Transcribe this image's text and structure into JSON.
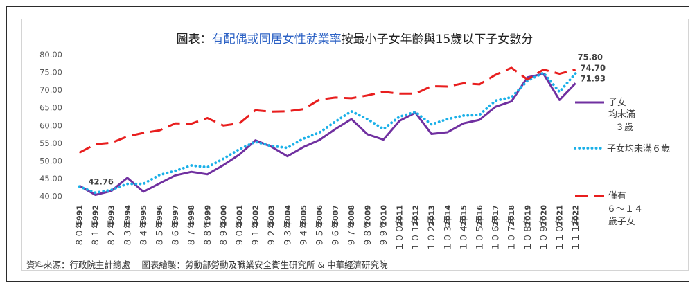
{
  "chart_data": {
    "type": "line",
    "title": {
      "prefix": "圖表：",
      "highlight": "有配偶或同居女性就業率",
      "suffix": "按最小子女年齡與15歲以下子女數分"
    },
    "x": [
      1991,
      1992,
      1993,
      1994,
      1995,
      1996,
      1997,
      1998,
      1999,
      2000,
      2001,
      2002,
      2003,
      2004,
      2005,
      2006,
      2007,
      2008,
      2009,
      2010,
      2011,
      2012,
      2013,
      2014,
      2015,
      2016,
      2017,
      2018,
      2019,
      2020,
      2021,
      2022
    ],
    "x_roc": [
      "８０年",
      "８１年",
      "８２年",
      "８３年",
      "８４年",
      "８５年",
      "８６年",
      "８７年",
      "８８年",
      "８９年",
      "９０年",
      "９１年",
      "９２年",
      "９３年",
      "９４年",
      "９５年",
      "９６年",
      "９７年",
      "９８年",
      "９９年",
      "１００年",
      "１０１年",
      "１０２年",
      "１０３年",
      "１０４年",
      "１０５年",
      "１０６年",
      "１０７年",
      "１０８年",
      "１０９年",
      "１１０年",
      "１１１年"
    ],
    "y_ticks": [
      "40.00",
      "45.00",
      "50.00",
      "55.00",
      "60.00",
      "65.00",
      "70.00",
      "75.00",
      "80.00"
    ],
    "ylim": [
      40,
      80
    ],
    "series": [
      {
        "key": "under3",
        "legend_lines": [
          "子女",
          "均未滿",
          "３歲"
        ],
        "color": "#7030a0",
        "style": "solid",
        "values": [
          43.0,
          40.4,
          41.5,
          45.2,
          41.3,
          43.6,
          45.9,
          46.9,
          46.2,
          48.8,
          51.8,
          55.8,
          54.0,
          51.3,
          53.9,
          55.9,
          59.0,
          61.8,
          57.5,
          56.0,
          61.3,
          63.6,
          57.6,
          58.1,
          60.6,
          61.6,
          65.3,
          66.8,
          73.6,
          74.6,
          67.2,
          71.93
        ]
      },
      {
        "key": "under6",
        "legend_lines": [
          "子女均未滿６歲"
        ],
        "color": "#1ab0e8",
        "style": "dotted",
        "values": [
          42.76,
          41.0,
          41.8,
          43.5,
          43.5,
          46.0,
          47.2,
          48.7,
          48.2,
          50.6,
          53.3,
          55.4,
          54.2,
          53.7,
          56.3,
          58.0,
          61.1,
          64.0,
          61.8,
          59.0,
          62.5,
          63.8,
          60.3,
          61.8,
          62.8,
          63.0,
          67.0,
          68.0,
          72.6,
          74.9,
          69.5,
          74.7
        ]
      },
      {
        "key": "only6to14",
        "legend_lines": [
          "僅有",
          "６～１４",
          "歲子女"
        ],
        "color": "#e81e1e",
        "style": "dashed",
        "values": [
          52.3,
          54.7,
          55.1,
          56.9,
          57.9,
          58.6,
          60.6,
          60.5,
          62.1,
          60.0,
          60.6,
          64.3,
          63.9,
          64.0,
          64.6,
          67.3,
          67.9,
          67.7,
          68.5,
          69.5,
          69.0,
          69.0,
          71.1,
          71.0,
          71.9,
          71.6,
          74.3,
          76.3,
          73.0,
          75.8,
          74.6,
          75.8
        ]
      }
    ],
    "data_labels": [
      {
        "series": "under6",
        "index": 0,
        "text": "42.76"
      },
      {
        "series": "only6to14",
        "index": 31,
        "text": "75.80"
      },
      {
        "series": "under6",
        "index": 31,
        "text": "74.70"
      },
      {
        "series": "under3",
        "index": 31,
        "text": "71.93"
      }
    ],
    "grid": false,
    "legend_position": "right"
  },
  "source_note": "資料來源：行政院主計總處　 圖表繪製：勞動部勞動及職業安全衛生研究所 & 中華經濟研究院"
}
